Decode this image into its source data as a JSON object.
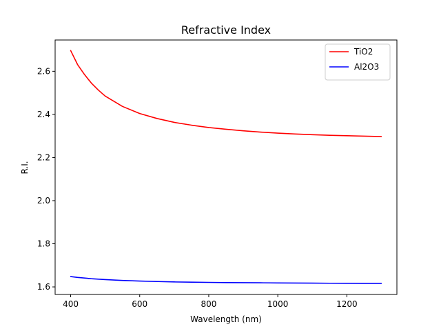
{
  "chart_data": {
    "type": "line",
    "title": "Refractive Index",
    "xlabel": "Wavelength (nm)",
    "ylabel": "R.I.",
    "xlim": [
      355,
      1345
    ],
    "ylim": [
      1.565,
      2.745
    ],
    "xticks": [
      400,
      600,
      800,
      1000,
      1200
    ],
    "yticks": [
      1.6,
      1.8,
      2.0,
      2.2,
      2.4,
      2.6
    ],
    "x": [
      400,
      420,
      440,
      460,
      480,
      500,
      550,
      600,
      650,
      700,
      750,
      800,
      850,
      900,
      950,
      1000,
      1050,
      1100,
      1150,
      1200,
      1250,
      1300
    ],
    "series": [
      {
        "name": "TiO2",
        "color": "#ff0000",
        "values": [
          2.696,
          2.631,
          2.585,
          2.545,
          2.513,
          2.485,
          2.437,
          2.404,
          2.381,
          2.363,
          2.35,
          2.339,
          2.331,
          2.324,
          2.318,
          2.313,
          2.309,
          2.306,
          2.303,
          2.301,
          2.299,
          2.297
        ]
      },
      {
        "name": "Al2O3",
        "color": "#0000ff",
        "values": [
          1.648,
          1.644,
          1.641,
          1.638,
          1.636,
          1.634,
          1.63,
          1.627,
          1.625,
          1.623,
          1.622,
          1.621,
          1.62,
          1.6195,
          1.619,
          1.6185,
          1.618,
          1.6175,
          1.617,
          1.6168,
          1.6165,
          1.6163
        ]
      }
    ],
    "legend": "top-right",
    "grid": false
  }
}
